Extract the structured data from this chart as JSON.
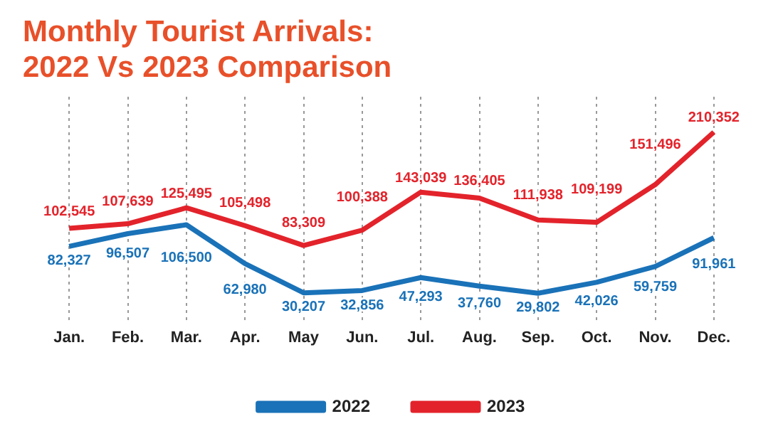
{
  "chart_data": {
    "type": "line",
    "title": "Monthly Tourist Arrivals:\n2022 Vs 2023 Comparison",
    "categories": [
      "Jan.",
      "Feb.",
      "Mar.",
      "Apr.",
      "May",
      "Jun.",
      "Jul.",
      "Aug.",
      "Sep.",
      "Oct.",
      "Nov.",
      "Dec."
    ],
    "series": [
      {
        "name": "2022",
        "color": "#1a72b8",
        "values": [
          82327,
          96507,
          106500,
          62980,
          30207,
          32856,
          47293,
          37760,
          29802,
          42026,
          59759,
          91961
        ],
        "value_labels": [
          "82,327",
          "96,507",
          "106,500",
          "62,980",
          "30,207",
          "32,856",
          "47,293",
          "37,760",
          "29,802",
          "42,026",
          "59,759",
          "91,961"
        ]
      },
      {
        "name": "2023",
        "color": "#e3232b",
        "values": [
          102545,
          107639,
          125495,
          105498,
          83309,
          100388,
          143039,
          136405,
          111938,
          109199,
          151496,
          210352
        ],
        "value_labels": [
          "102,545",
          "107,639",
          "125,495",
          "105,498",
          "83,309",
          "100,388",
          "143,039",
          "136,405",
          "111,938",
          "109,199",
          "151,496",
          "210,352"
        ]
      }
    ],
    "grid": "x",
    "legend": "bottom",
    "marker": "none",
    "line_style": "solid"
  }
}
